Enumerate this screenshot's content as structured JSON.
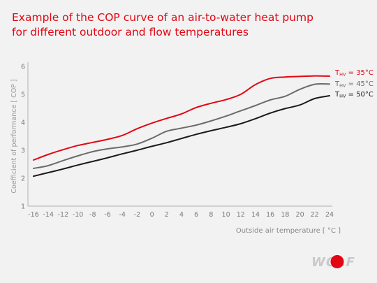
{
  "title_lines": [
    "Example of the COP curve of an air-to-water heat pump",
    "for different outdoor and flow temperatures"
  ],
  "logo": {
    "text": "WOLF",
    "dot_color": "#e30613"
  },
  "chart_data": {
    "type": "line",
    "xlabel": "Outside air temperature [ °C ]",
    "ylabel": "Coefficient of performance [ COP ]",
    "xlim": [
      -16,
      24
    ],
    "ylim": [
      1,
      6
    ],
    "xticks": [
      -16,
      -14,
      -12,
      -10,
      -8,
      -6,
      -4,
      -2,
      0,
      2,
      4,
      6,
      8,
      10,
      12,
      14,
      16,
      18,
      20,
      22,
      24
    ],
    "yticks": [
      1,
      2,
      3,
      4,
      5,
      6
    ],
    "grid": false,
    "legend_position": "right-end-of-lines",
    "series": [
      {
        "name": "THV = 35°C",
        "legend_main": "T",
        "legend_sub": "HV",
        "legend_rest": " = 35°C",
        "color": "#e30613",
        "x": [
          -16,
          -14,
          -12,
          -10,
          -8,
          -6,
          -4,
          -2,
          0,
          2,
          4,
          6,
          8,
          10,
          12,
          14,
          16,
          18,
          20,
          22,
          24
        ],
        "y": [
          2.65,
          2.85,
          3.02,
          3.17,
          3.28,
          3.39,
          3.53,
          3.77,
          3.97,
          4.14,
          4.3,
          4.53,
          4.68,
          4.81,
          5.0,
          5.35,
          5.57,
          5.62,
          5.64,
          5.66,
          5.65
        ]
      },
      {
        "name": "THV = 45°C",
        "legend_main": "T",
        "legend_sub": "HV",
        "legend_rest": " = 45°C",
        "color": "#6b6b6b",
        "x": [
          -16,
          -14,
          -12,
          -10,
          -8,
          -6,
          -4,
          -2,
          0,
          2,
          4,
          6,
          8,
          10,
          12,
          14,
          16,
          18,
          20,
          22,
          24
        ],
        "y": [
          2.35,
          2.45,
          2.63,
          2.8,
          2.95,
          3.05,
          3.12,
          3.22,
          3.43,
          3.68,
          3.79,
          3.9,
          4.05,
          4.22,
          4.41,
          4.6,
          4.8,
          4.93,
          5.18,
          5.36,
          5.37
        ]
      },
      {
        "name": "THV = 50°C",
        "legend_main": "T",
        "legend_sub": "HV",
        "legend_rest": " = 50°C",
        "color": "#1a1a1a",
        "x": [
          -16,
          -14,
          -12,
          -10,
          -8,
          -6,
          -4,
          -2,
          0,
          2,
          4,
          6,
          8,
          10,
          12,
          14,
          16,
          18,
          20,
          22,
          24
        ],
        "y": [
          2.07,
          2.2,
          2.33,
          2.47,
          2.6,
          2.73,
          2.87,
          3.0,
          3.14,
          3.27,
          3.42,
          3.57,
          3.7,
          3.82,
          3.95,
          4.13,
          4.33,
          4.49,
          4.62,
          4.85,
          4.95
        ]
      }
    ]
  }
}
